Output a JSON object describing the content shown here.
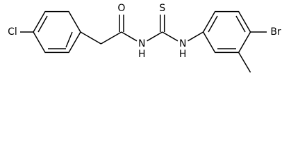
{
  "atoms": [
    "Cl",
    "O",
    "N",
    "H",
    "S",
    "N",
    "H",
    "Br"
  ]
}
